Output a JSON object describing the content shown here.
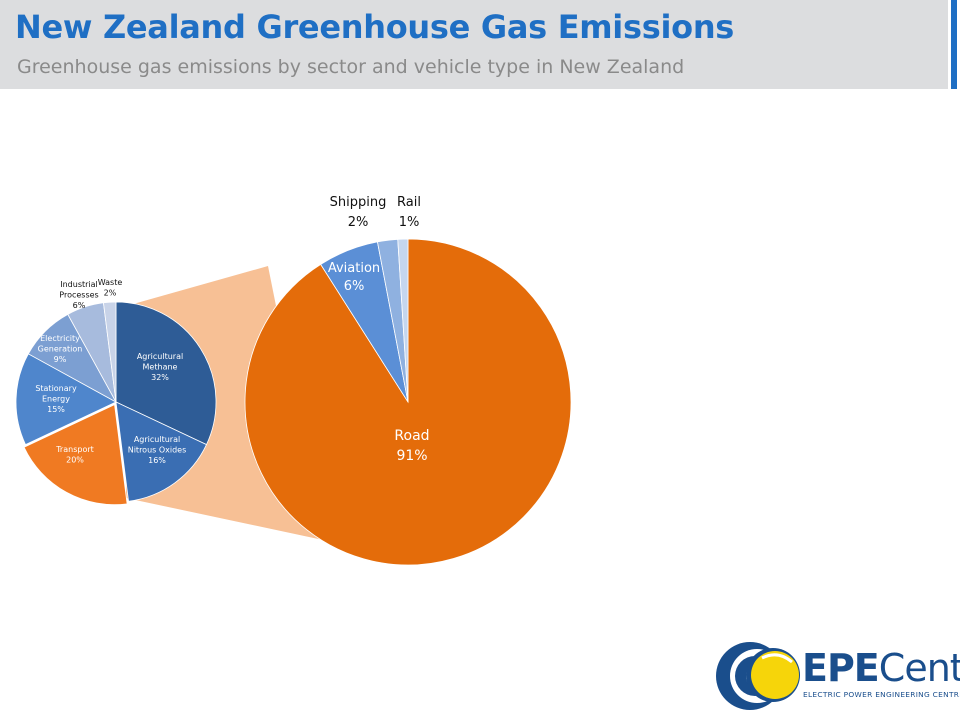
{
  "header": {
    "title": "New Zealand Greenhouse Gas Emissions",
    "subtitle": "Greenhouse gas emissions by sector and vehicle type in New Zealand"
  },
  "logo": {
    "text_bold": "EPE",
    "text_regular": "Centre",
    "subtext": "ELECTRIC POWER ENGINEERING CENTRE"
  },
  "chart_data": [
    {
      "type": "pie",
      "title": "",
      "slices": [
        {
          "label": [
            "Agricultural",
            "Methane"
          ],
          "value": 32,
          "value_label": "32%",
          "color": "#2e5c96"
        },
        {
          "label": [
            "Agricultural",
            "Nitrous Oxides"
          ],
          "value": 16,
          "value_label": "16%",
          "color": "#3a6eb3"
        },
        {
          "label": [
            "Transport"
          ],
          "value": 20,
          "value_label": "20%",
          "color": "#f07a22"
        },
        {
          "label": [
            "Stationary",
            "Energy"
          ],
          "value": 15,
          "value_label": "15%",
          "color": "#4f86cc"
        },
        {
          "label": [
            "Electricity",
            "Generation"
          ],
          "value": 9,
          "value_label": "9%",
          "color": "#7c9fd2"
        },
        {
          "label": [
            "Industrial",
            "Processes"
          ],
          "value": 6,
          "value_label": "6%",
          "color": "#a7bbdd"
        },
        {
          "label": [
            "Waste"
          ],
          "value": 2,
          "value_label": "2%",
          "color": "#c8d3e8"
        }
      ]
    },
    {
      "type": "pie",
      "title": "",
      "parent_slice": "Transport",
      "slices": [
        {
          "label": [
            "Road"
          ],
          "value": 91,
          "value_label": "91%",
          "color": "#e46c0a"
        },
        {
          "label": [
            "Aviation"
          ],
          "value": 6,
          "value_label": "6%",
          "color": "#5b8fd6"
        },
        {
          "label": [
            "Shipping"
          ],
          "value": 2,
          "value_label": "2%",
          "color": "#8fb1e0"
        },
        {
          "label": [
            "Rail"
          ],
          "value": 1,
          "value_label": "1%",
          "color": "#c5d6ee"
        }
      ]
    }
  ],
  "colors": {
    "title": "#1f6fc4",
    "header_bg": "#dcdddf",
    "connector": "#f7c095",
    "logo_blue": "#1a4e8c",
    "logo_yellow": "#f6d50a"
  }
}
